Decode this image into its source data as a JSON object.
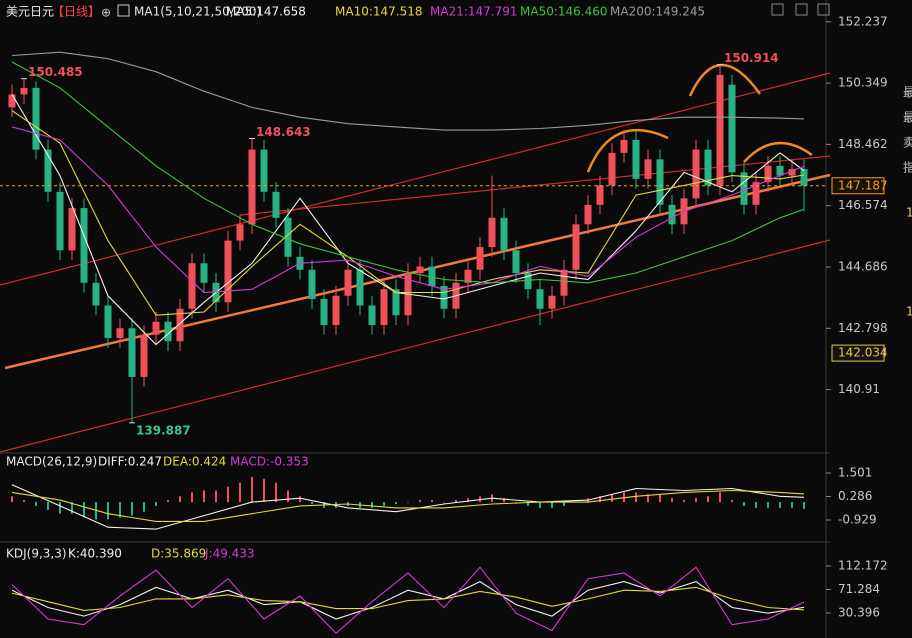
{
  "header": {
    "symbol": "美元日元",
    "period": "【日线】",
    "icon": "⊕",
    "indicator": "MA1(5,10,21,50,200)"
  },
  "side_panel": [
    "最",
    "最",
    "卖",
    "指",
    "1",
    "1"
  ],
  "chart_data": [
    {
      "type": "candlestick",
      "up_color": "#f0505a",
      "down_color": "#27b383",
      "open": [
        149.6,
        150.0,
        150.2,
        148.3,
        147.0,
        145.2,
        146.5,
        144.2,
        143.5,
        142.5,
        142.8,
        141.3,
        142.6,
        143.0,
        142.4,
        143.4,
        144.8,
        144.2,
        143.6,
        145.5,
        146.0,
        148.3,
        147.0,
        146.2,
        145.0,
        144.6,
        143.7,
        142.9,
        143.8,
        144.6,
        143.5,
        142.9,
        144.0,
        143.2,
        144.5,
        144.7,
        144.1,
        143.4,
        144.2,
        144.6,
        145.3,
        146.2,
        145.2,
        144.5,
        144.0,
        143.4,
        143.8,
        144.6,
        146.0,
        146.6,
        147.2,
        148.2,
        148.6,
        147.4,
        148.0,
        146.6,
        146.0,
        146.8,
        148.3,
        147.2,
        150.3,
        147.6,
        146.6,
        147.3,
        147.8,
        147.5,
        147.7
      ],
      "high": [
        150.3,
        150.485,
        150.4,
        148.6,
        147.3,
        146.8,
        146.8,
        144.5,
        143.8,
        143.1,
        143.1,
        142.9,
        143.3,
        143.3,
        143.7,
        145.1,
        145.1,
        144.5,
        145.8,
        146.3,
        148.643,
        148.6,
        147.3,
        146.5,
        145.3,
        144.9,
        144.0,
        144.1,
        144.9,
        144.9,
        143.8,
        144.3,
        144.3,
        144.8,
        145.0,
        145.0,
        144.4,
        144.5,
        144.9,
        145.6,
        147.5,
        146.5,
        145.5,
        144.8,
        144.3,
        144.1,
        144.9,
        146.3,
        146.9,
        147.5,
        148.5,
        148.9,
        148.9,
        148.3,
        148.3,
        146.9,
        147.1,
        148.6,
        148.6,
        150.914,
        150.6,
        147.9,
        147.6,
        148.1,
        148.1,
        148.0,
        148.0
      ],
      "low": [
        149.3,
        149.7,
        148.0,
        146.7,
        144.9,
        144.9,
        143.9,
        143.2,
        142.2,
        142.2,
        139.887,
        141.0,
        142.3,
        142.1,
        142.1,
        143.1,
        143.9,
        143.3,
        143.3,
        145.2,
        145.7,
        146.7,
        145.9,
        144.7,
        144.3,
        143.4,
        142.6,
        142.6,
        143.5,
        143.2,
        142.6,
        142.6,
        142.9,
        142.9,
        144.2,
        143.8,
        143.1,
        143.1,
        143.9,
        144.3,
        145.0,
        144.9,
        144.2,
        143.7,
        142.9,
        143.1,
        143.5,
        144.3,
        145.7,
        146.3,
        146.9,
        147.9,
        147.1,
        147.1,
        146.3,
        145.7,
        145.7,
        146.5,
        146.9,
        146.9,
        147.3,
        146.3,
        146.3,
        147.0,
        147.2,
        147.2,
        146.4
      ],
      "close": [
        150.0,
        150.2,
        148.3,
        147.0,
        145.2,
        146.5,
        144.2,
        143.5,
        142.5,
        142.8,
        141.3,
        142.6,
        143.0,
        142.4,
        143.4,
        144.8,
        144.2,
        143.6,
        145.5,
        146.0,
        148.3,
        147.0,
        146.2,
        145.0,
        144.6,
        143.7,
        142.9,
        143.8,
        144.6,
        143.5,
        142.9,
        144.0,
        143.2,
        144.5,
        144.7,
        144.1,
        143.4,
        144.2,
        144.6,
        145.3,
        146.2,
        145.2,
        144.5,
        144.0,
        143.4,
        143.8,
        144.6,
        146.0,
        146.6,
        147.2,
        148.2,
        148.6,
        147.4,
        148.0,
        146.6,
        146.0,
        146.8,
        148.3,
        147.2,
        150.6,
        147.6,
        146.6,
        147.3,
        147.8,
        147.5,
        147.7,
        147.187
      ],
      "series": [
        {
          "name": "MA5:147.658",
          "color": "#f2f2f2",
          "x": [
            0,
            4,
            8,
            12,
            16,
            20,
            24,
            28,
            32,
            36,
            40,
            44,
            48,
            52,
            56,
            60,
            64,
            66
          ],
          "values": [
            150.0,
            147.5,
            143.8,
            142.3,
            143.6,
            144.8,
            146.8,
            144.8,
            143.9,
            143.7,
            144.1,
            144.5,
            144.3,
            145.8,
            147.6,
            147.0,
            148.2,
            147.658
          ]
        },
        {
          "name": "MA10:147.518",
          "color": "#e6d93a",
          "x": [
            0,
            4,
            8,
            12,
            16,
            20,
            24,
            28,
            32,
            36,
            40,
            44,
            48,
            52,
            56,
            60,
            64,
            66
          ],
          "values": [
            149.5,
            148.5,
            145.5,
            143.2,
            143.3,
            144.7,
            146.0,
            145.0,
            143.9,
            143.9,
            144.3,
            144.6,
            144.5,
            146.9,
            147.2,
            147.5,
            147.4,
            147.518
          ]
        },
        {
          "name": "MA21:147.791",
          "color": "#d63ad6",
          "x": [
            0,
            4,
            8,
            12,
            16,
            20,
            24,
            28,
            32,
            36,
            40,
            44,
            48,
            52,
            56,
            60,
            64,
            66
          ],
          "values": [
            149.0,
            148.6,
            147.2,
            145.3,
            143.9,
            144.0,
            144.8,
            144.9,
            144.4,
            144.0,
            144.2,
            144.7,
            144.4,
            145.6,
            146.4,
            146.9,
            147.5,
            147.791
          ]
        },
        {
          "name": "MA50:146.460",
          "color": "#3cc43c",
          "x": [
            0,
            4,
            8,
            12,
            16,
            20,
            24,
            28,
            32,
            36,
            40,
            44,
            48,
            52,
            56,
            60,
            64,
            66
          ],
          "values": [
            151.0,
            150.2,
            149.0,
            147.8,
            146.8,
            146.0,
            145.4,
            145.0,
            144.6,
            144.3,
            144.2,
            144.3,
            144.2,
            144.5,
            145.0,
            145.5,
            146.2,
            146.46
          ]
        },
        {
          "name": "MA200:149.245",
          "color": "#9a9a9a",
          "x": [
            0,
            4,
            8,
            12,
            16,
            20,
            24,
            28,
            32,
            36,
            40,
            44,
            48,
            52,
            56,
            60,
            64,
            66
          ],
          "values": [
            151.2,
            151.3,
            151.1,
            150.7,
            150.1,
            149.6,
            149.3,
            149.1,
            149.0,
            148.9,
            148.9,
            148.95,
            149.05,
            149.2,
            149.3,
            149.3,
            149.27,
            149.245
          ]
        }
      ],
      "annotations": [
        {
          "value": 150.485,
          "x": 1,
          "color": "#f0505a"
        },
        {
          "value": 139.887,
          "x": 10,
          "color": "#3cc48a"
        },
        {
          "value": 148.643,
          "x": 20,
          "color": "#f0505a"
        },
        {
          "value": 150.914,
          "x": 59,
          "color": "#f0505a"
        }
      ],
      "last_price": {
        "value": 147.187,
        "color": "#f0a020"
      },
      "marker": {
        "value": 142.034,
        "color": "#e6c84a"
      },
      "ylim": [
        139.05,
        152.6
      ],
      "yticks": [
        152.237,
        150.349,
        148.462,
        146.574,
        144.686,
        142.798,
        140.91
      ]
    },
    {
      "type": "macd",
      "title": "MACD(26,12,9)",
      "histogram": {
        "name": "MACD:-0.353",
        "color": "#d63ad6",
        "up_color": "#f0505a",
        "down_color": "#27b383",
        "values": [
          0.3,
          0.1,
          -0.2,
          -0.4,
          -0.6,
          -0.6,
          -0.8,
          -0.9,
          -0.9,
          -0.8,
          -0.7,
          -0.5,
          -0.2,
          0.1,
          0.3,
          0.5,
          0.6,
          0.6,
          0.8,
          1.0,
          1.3,
          1.2,
          1.0,
          0.6,
          0.3,
          -0.1,
          -0.3,
          -0.3,
          -0.2,
          -0.3,
          -0.3,
          -0.2,
          -0.1,
          0.0,
          0.1,
          0.1,
          0.0,
          0.1,
          0.2,
          0.3,
          0.4,
          0.2,
          0.0,
          -0.2,
          -0.3,
          -0.3,
          -0.2,
          0.0,
          0.2,
          0.3,
          0.4,
          0.5,
          0.5,
          0.4,
          0.4,
          0.2,
          0.1,
          0.2,
          0.3,
          0.5,
          0.1,
          -0.2,
          -0.3,
          -0.3,
          -0.3,
          -0.3,
          -0.353
        ]
      },
      "series": [
        {
          "name": "DIFF:0.247",
          "color": "#f2f2f2",
          "x": [
            0,
            4,
            8,
            12,
            16,
            20,
            24,
            28,
            32,
            36,
            40,
            44,
            48,
            52,
            56,
            60,
            64,
            66
          ],
          "values": [
            0.9,
            -0.2,
            -1.3,
            -1.4,
            -0.7,
            0.0,
            0.2,
            -0.3,
            -0.5,
            -0.1,
            0.2,
            0.0,
            0.1,
            0.7,
            0.6,
            0.7,
            0.3,
            0.247
          ]
        },
        {
          "name": "DEA:0.424",
          "color": "#e6d93a",
          "x": [
            0,
            4,
            8,
            12,
            16,
            20,
            24,
            28,
            32,
            36,
            40,
            44,
            48,
            52,
            56,
            60,
            64,
            66
          ],
          "values": [
            0.5,
            0.1,
            -0.6,
            -1.0,
            -1.0,
            -0.6,
            -0.2,
            -0.1,
            -0.3,
            -0.3,
            -0.1,
            0.0,
            0.0,
            0.3,
            0.5,
            0.6,
            0.5,
            0.424
          ]
        }
      ],
      "ylim": [
        -1.86,
        2.28
      ],
      "yticks": [
        1.501,
        0.286,
        -0.929
      ]
    },
    {
      "type": "kdj",
      "title": "KDJ(9,3,3)",
      "series": [
        {
          "name": "K:40.390",
          "color": "#f2f2f2",
          "x": [
            0,
            3,
            6,
            9,
            12,
            15,
            18,
            21,
            24,
            27,
            30,
            33,
            36,
            39,
            42,
            45,
            48,
            51,
            54,
            57,
            60,
            63,
            66
          ],
          "values": [
            70,
            40,
            25,
            45,
            75,
            55,
            70,
            45,
            50,
            20,
            40,
            70,
            55,
            85,
            45,
            25,
            70,
            85,
            65,
            85,
            40,
            30,
            40.39
          ]
        },
        {
          "name": "D:35.869",
          "color": "#e6d93a",
          "x": [
            0,
            3,
            6,
            9,
            12,
            15,
            18,
            21,
            24,
            27,
            30,
            33,
            36,
            39,
            42,
            45,
            48,
            51,
            54,
            57,
            60,
            63,
            66
          ],
          "values": [
            65,
            50,
            35,
            40,
            55,
            55,
            62,
            52,
            50,
            38,
            38,
            52,
            55,
            68,
            58,
            42,
            55,
            70,
            68,
            75,
            55,
            40,
            35.869
          ]
        },
        {
          "name": "J:49.433",
          "color": "#d63ad6",
          "x": [
            0,
            3,
            6,
            9,
            12,
            15,
            18,
            21,
            24,
            27,
            30,
            33,
            36,
            39,
            42,
            45,
            48,
            51,
            54,
            57,
            60,
            63,
            66
          ],
          "values": [
            80,
            20,
            10,
            60,
            105,
            40,
            90,
            20,
            60,
            -5,
            50,
            100,
            40,
            110,
            30,
            0,
            90,
            100,
            60,
            110,
            10,
            20,
            49.433
          ]
        }
      ],
      "ylim": [
        -13.1,
        143.5
      ],
      "yticks": [
        112.172,
        71.284,
        30.396
      ]
    }
  ]
}
